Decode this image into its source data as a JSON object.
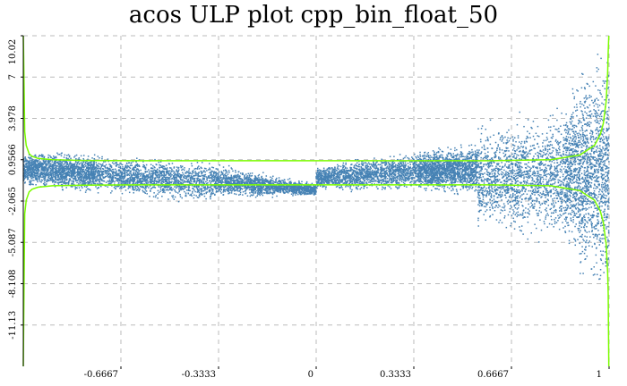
{
  "chart_data": {
    "type": "scatter",
    "title": "acos ULP plot cpp_bin_float_50",
    "xlabel": "",
    "ylabel": "",
    "xlim": [
      -1,
      1
    ],
    "ylim": [
      -14.15,
      10.02
    ],
    "x_ticks": [
      -0.6667,
      -0.3333,
      0,
      0.3333,
      0.6667,
      1
    ],
    "x_tick_labels": [
      "-0.6667",
      "-0.3333",
      "0",
      "0.3333",
      "0.6667",
      "1"
    ],
    "y_ticks": [
      10.02,
      7,
      3.978,
      0.9566,
      -2.065,
      -5.087,
      -8.108,
      -11.13
    ],
    "y_tick_labels": [
      "10.02",
      "7",
      "3.978",
      "0.9566",
      "-2.065",
      "-5.087",
      "-8.108",
      "-11.13"
    ],
    "grid": true,
    "colors": {
      "points": "#4682b4",
      "bound": "#7cfc00",
      "grid": "#bbbbbb"
    },
    "series": [
      {
        "kind": "scatter",
        "color": "#4682b4",
        "points_per_segment": 1600,
        "spread_segments": [
          {
            "x0": -1.0,
            "x1": -0.75,
            "lo0": -1.0,
            "hi0": 1.5,
            "lo1": -1.5,
            "hi1": 1.4
          },
          {
            "x0": -0.75,
            "x1": -0.35,
            "lo0": -1.5,
            "hi0": 1.2,
            "lo1": -2.2,
            "hi1": 0.8
          },
          {
            "x0": -0.35,
            "x1": 0.0,
            "lo0": -1.8,
            "hi0": 0.6,
            "lo1": -1.7,
            "hi1": -0.8
          },
          {
            "x0": 0.0,
            "x1": 0.35,
            "lo0": -1.3,
            "hi0": 0.5,
            "lo1": -1.3,
            "hi1": 1.6
          },
          {
            "x0": 0.35,
            "x1": 0.55,
            "lo0": -1.4,
            "hi0": 1.6,
            "lo1": -1.6,
            "hi1": 2.2
          },
          {
            "x0": 0.55,
            "x1": 0.85,
            "lo0": -4.0,
            "hi0": 3.2,
            "lo1": -5.0,
            "hi1": 4.8
          },
          {
            "x0": 0.85,
            "x1": 1.0,
            "lo0": -5.5,
            "hi0": 5.5,
            "lo1": -9.5,
            "hi1": 9.5
          }
        ]
      },
      {
        "kind": "error-bound",
        "color": "#7cfc00",
        "x": [
          -1.0,
          -0.999,
          -0.995,
          -0.99,
          -0.98,
          -0.97,
          -0.95,
          -0.9,
          -0.8,
          -0.6,
          -0.3,
          0.0,
          0.3,
          0.6,
          0.8,
          0.9,
          0.95,
          0.97,
          0.98,
          0.99,
          0.995,
          0.997,
          0.999
        ],
        "upper": [
          10.02,
          9.0,
          3.0,
          2.0,
          1.4,
          1.2,
          1.05,
          0.95,
          0.9,
          0.88,
          0.88,
          0.88,
          0.88,
          0.88,
          0.95,
          1.3,
          2.0,
          2.8,
          3.6,
          5.2,
          7.3,
          8.8,
          10.02
        ],
        "lower": [
          -14.15,
          -12.0,
          -3.0,
          -2.0,
          -1.4,
          -1.2,
          -1.05,
          -0.95,
          -0.9,
          -0.88,
          -0.88,
          -0.88,
          -0.88,
          -0.88,
          -0.95,
          -1.3,
          -2.0,
          -2.8,
          -3.6,
          -5.2,
          -7.3,
          -8.8,
          -14.15
        ]
      }
    ]
  }
}
